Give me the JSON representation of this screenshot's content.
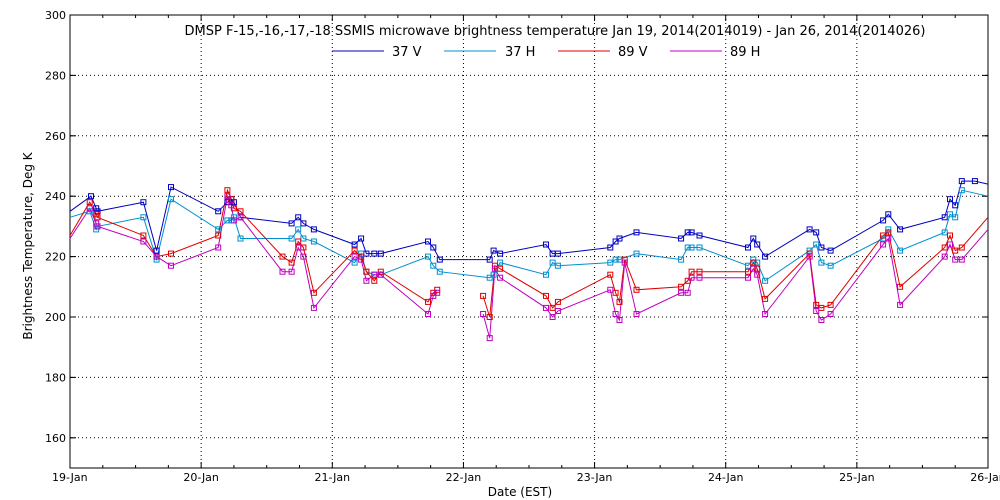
{
  "chart_data": {
    "type": "line",
    "title": "DMSP F-15,-16,-17,-18 SSMIS microwave brightness temperature Jan 19, 2014(2014019) - Jan 26, 2014(2014026)",
    "xlabel": "Date (EST)",
    "ylabel": "Brightness Temperature, Deg K",
    "xlim": [
      0,
      7
    ],
    "ylim": [
      150,
      300
    ],
    "x_tick_values": [
      0,
      1,
      2,
      3,
      4,
      5,
      6,
      7
    ],
    "x_tick_labels": [
      "19-Jan",
      "20-Jan",
      "21-Jan",
      "22-Jan",
      "23-Jan",
      "24-Jan",
      "25-Jan",
      "26-Jan"
    ],
    "y_ticks": [
      160,
      180,
      200,
      220,
      240,
      260,
      280,
      300
    ],
    "grid": true,
    "legend_position": "top-center",
    "series": [
      {
        "name": "37 V",
        "color": "#0000c0",
        "x": [
          0.0,
          0.16,
          0.2,
          0.21,
          0.56,
          0.66,
          0.77,
          1.13,
          1.2,
          1.23,
          1.25,
          1.3,
          1.69,
          1.74,
          1.78,
          1.86,
          2.17,
          2.22,
          2.26,
          2.32,
          2.37,
          2.73,
          2.77,
          2.82,
          3.2,
          3.23,
          3.28,
          3.63,
          3.68,
          3.72,
          4.12,
          4.16,
          4.19,
          4.32,
          4.66,
          4.71,
          4.74,
          4.8,
          5.17,
          5.21,
          5.24,
          5.3,
          5.64,
          5.69,
          5.73,
          5.8,
          6.2,
          6.24,
          6.33,
          6.67,
          6.71,
          6.75,
          6.8,
          6.9,
          7.0
        ],
        "y": [
          235,
          240,
          236,
          235,
          238,
          222,
          243,
          235,
          238,
          239,
          238,
          233,
          231,
          233,
          231,
          229,
          224,
          226,
          221,
          221,
          221,
          225,
          223,
          219,
          219,
          222,
          221,
          224,
          221,
          221,
          223,
          225,
          226,
          228,
          226,
          228,
          228,
          227,
          223,
          226,
          224,
          220,
          229,
          228,
          223,
          222,
          232,
          234,
          229,
          233,
          239,
          237,
          245,
          245,
          244
        ]
      },
      {
        "name": "37 H",
        "color": "#0090d0",
        "x": [
          0.0,
          0.15,
          0.2,
          0.21,
          0.56,
          0.66,
          0.77,
          1.13,
          1.2,
          1.23,
          1.25,
          1.3,
          1.69,
          1.74,
          1.78,
          1.86,
          2.17,
          2.22,
          2.26,
          2.32,
          2.37,
          2.73,
          2.77,
          2.82,
          3.2,
          3.23,
          3.28,
          3.63,
          3.68,
          3.72,
          4.12,
          4.16,
          4.19,
          4.32,
          4.66,
          4.71,
          4.74,
          4.8,
          5.17,
          5.21,
          5.24,
          5.3,
          5.64,
          5.69,
          5.73,
          5.8,
          6.2,
          6.24,
          6.33,
          6.67,
          6.71,
          6.75,
          6.8,
          7.0
        ],
        "y": [
          233,
          235,
          229,
          230,
          233,
          219,
          239,
          229,
          232,
          232,
          233,
          226,
          226,
          229,
          226,
          225,
          218,
          221,
          215,
          214,
          214,
          220,
          217,
          215,
          213,
          214,
          218,
          214,
          218,
          217,
          218,
          219,
          219,
          221,
          219,
          223,
          223,
          223,
          217,
          219,
          218,
          212,
          222,
          224,
          218,
          217,
          226,
          229,
          222,
          228,
          234,
          233,
          242,
          240
        ]
      },
      {
        "name": "89 V",
        "color": "#e00000",
        "x": [
          0.0,
          0.15,
          0.2,
          0.21,
          0.56,
          0.66,
          0.77,
          1.13,
          1.2,
          1.23,
          1.25,
          1.3,
          1.62,
          1.69,
          1.74,
          1.78,
          1.86,
          2.17,
          2.22,
          2.26,
          2.32,
          2.37,
          2.73,
          2.77,
          2.8,
          null,
          3.15,
          3.2,
          3.24,
          3.28,
          3.63,
          3.68,
          3.72,
          4.12,
          4.16,
          4.19,
          4.23,
          4.32,
          4.66,
          4.71,
          4.74,
          4.8,
          5.17,
          5.21,
          5.24,
          5.3,
          5.64,
          5.69,
          5.73,
          5.8,
          6.2,
          6.24,
          6.33,
          6.67,
          6.71,
          6.75,
          6.8,
          7.0
        ],
        "y": [
          227,
          238,
          234,
          233,
          227,
          220,
          221,
          227,
          242,
          239,
          236,
          235,
          220,
          218,
          225,
          223,
          208,
          222,
          220,
          215,
          212,
          215,
          205,
          208,
          209,
          null,
          207,
          200,
          217,
          216,
          207,
          203,
          205,
          214,
          208,
          205,
          219,
          209,
          210,
          212,
          215,
          215,
          215,
          218,
          216,
          206,
          221,
          204,
          203,
          204,
          227,
          228,
          210,
          223,
          227,
          222,
          223,
          233
        ]
      },
      {
        "name": "89 H",
        "color": "#c000c0",
        "x": [
          0.0,
          0.15,
          0.2,
          0.21,
          0.56,
          0.66,
          0.77,
          1.13,
          1.2,
          1.23,
          1.25,
          1.3,
          1.62,
          1.69,
          1.74,
          1.78,
          1.86,
          2.17,
          2.22,
          2.26,
          2.32,
          2.37,
          2.73,
          2.77,
          2.8,
          null,
          3.15,
          3.2,
          3.24,
          3.28,
          3.63,
          3.68,
          3.72,
          4.12,
          4.16,
          4.19,
          4.23,
          4.32,
          4.66,
          4.71,
          4.74,
          4.8,
          5.17,
          5.21,
          5.24,
          5.3,
          5.64,
          5.69,
          5.73,
          5.8,
          6.2,
          6.24,
          6.33,
          6.67,
          6.71,
          6.75,
          6.8,
          7.0
        ],
        "y": [
          226,
          236,
          231,
          230,
          225,
          220,
          217,
          223,
          240,
          237,
          232,
          233,
          215,
          215,
          223,
          220,
          203,
          220,
          219,
          212,
          214,
          214,
          201,
          207,
          208,
          null,
          201,
          193,
          216,
          213,
          203,
          200,
          202,
          209,
          201,
          199,
          218,
          201,
          208,
          208,
          213,
          213,
          213,
          216,
          214,
          201,
          220,
          202,
          199,
          201,
          224,
          226,
          204,
          220,
          224,
          219,
          219,
          229
        ]
      }
    ]
  }
}
